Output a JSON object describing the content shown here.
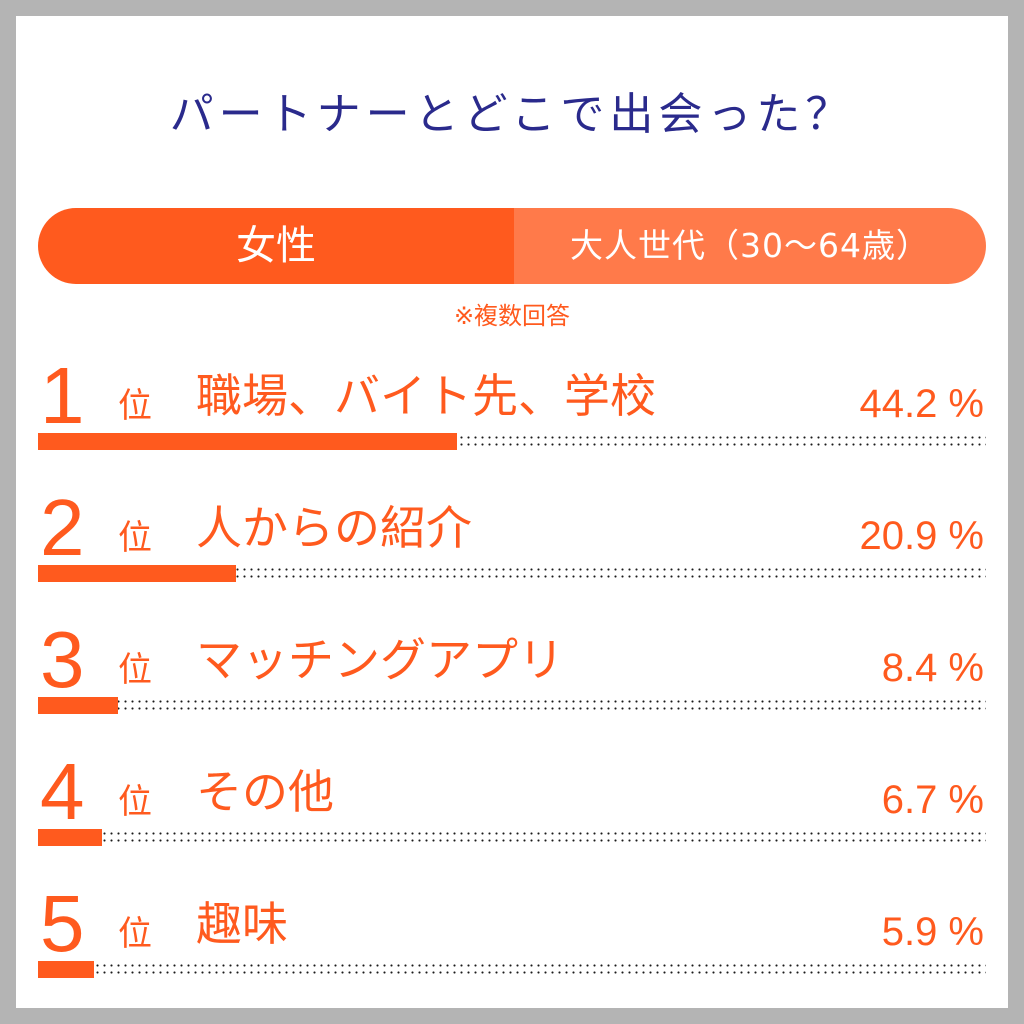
{
  "title": "パートナーとどこで出会った？",
  "segment": {
    "left": "女性",
    "right": "大人世代（30～64歳）"
  },
  "note": "※複数回答",
  "rank_suffix": "位",
  "percent_sign": "%",
  "colors": {
    "accent": "#ff5a1e",
    "accent_light": "#ff7a4a",
    "title": "#2a2a8c",
    "dots": "#1a1a1a"
  },
  "chart_data": {
    "type": "bar",
    "orientation": "horizontal",
    "categories": [
      "職場、バイト先、学校",
      "人からの紹介",
      "マッチングアプリ",
      "その他",
      "趣味"
    ],
    "ranks": [
      "1",
      "2",
      "3",
      "4",
      "5"
    ],
    "values": [
      44.2,
      20.9,
      8.4,
      6.7,
      5.9
    ],
    "value_labels": [
      "44.2 %",
      "20.9 %",
      "8.4 %",
      "6.7 %",
      "5.9 %"
    ],
    "xlim": [
      0,
      100
    ],
    "title": "パートナーとどこで出会った？"
  }
}
